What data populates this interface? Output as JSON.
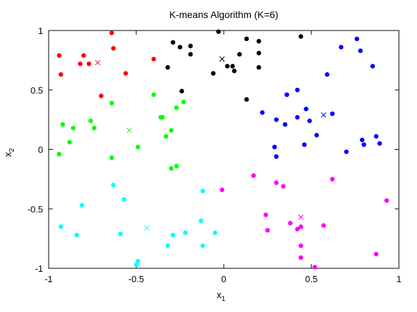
{
  "chart_data": {
    "type": "scatter",
    "title": "K-means Algorithm (K=6)",
    "xlabel": "x",
    "xlabel_sub": "1",
    "ylabel": "x",
    "ylabel_sub": "2",
    "xlim": [
      -1,
      1
    ],
    "ylim": [
      -1,
      1
    ],
    "xticks": [
      -1,
      -0.5,
      0,
      0.5,
      1
    ],
    "xtick_labels": [
      "-1",
      "-0.5",
      "0",
      "0.5",
      "1"
    ],
    "yticks": [
      -1,
      -0.5,
      0,
      0.5,
      1
    ],
    "ytick_labels": [
      "-1",
      "-0.5",
      "0",
      "0.5",
      "1"
    ],
    "grid": false,
    "series": [
      {
        "color": "#ff0000",
        "points": [
          [
            -0.94,
            0.79
          ],
          [
            -0.93,
            0.63
          ],
          [
            -0.8,
            0.79
          ],
          [
            -0.82,
            0.72
          ],
          [
            -0.77,
            0.72
          ],
          [
            -0.64,
            0.98
          ],
          [
            -0.63,
            0.85
          ],
          [
            -0.56,
            0.64
          ],
          [
            -0.4,
            0.76
          ],
          [
            -0.7,
            0.45
          ]
        ],
        "centroid": [
          -0.72,
          0.73
        ]
      },
      {
        "color": "#000000",
        "points": [
          [
            -0.29,
            0.9
          ],
          [
            -0.25,
            0.86
          ],
          [
            -0.19,
            0.87
          ],
          [
            -0.19,
            0.8
          ],
          [
            -0.32,
            0.69
          ],
          [
            -0.24,
            0.49
          ],
          [
            -0.03,
            0.99
          ],
          [
            0.13,
            0.93
          ],
          [
            0.2,
            0.91
          ],
          [
            0.2,
            0.81
          ],
          [
            0.09,
            0.8
          ],
          [
            0.05,
            0.7
          ],
          [
            0.02,
            0.7
          ],
          [
            0.06,
            0.66
          ],
          [
            -0.06,
            0.64
          ],
          [
            0.2,
            0.69
          ],
          [
            0.44,
            0.95
          ],
          [
            0.13,
            0.42
          ]
        ],
        "centroid": [
          -0.01,
          0.76
        ]
      },
      {
        "color": "#00ff00",
        "points": [
          [
            -0.92,
            0.21
          ],
          [
            -0.86,
            0.18
          ],
          [
            -0.94,
            -0.04
          ],
          [
            -0.88,
            0.06
          ],
          [
            -0.76,
            0.24
          ],
          [
            -0.74,
            0.18
          ],
          [
            -0.64,
            0.39
          ],
          [
            -0.64,
            -0.07
          ],
          [
            -0.49,
            0.02
          ],
          [
            -0.4,
            0.46
          ],
          [
            -0.36,
            0.27
          ],
          [
            -0.35,
            0.27
          ],
          [
            -0.33,
            0.11
          ],
          [
            -0.3,
            0.16
          ],
          [
            -0.27,
            0.35
          ],
          [
            -0.23,
            0.4
          ],
          [
            -0.3,
            -0.16
          ],
          [
            -0.27,
            -0.14
          ]
        ],
        "centroid": [
          -0.54,
          0.16
        ]
      },
      {
        "color": "#0000ff",
        "points": [
          [
            0.22,
            0.31
          ],
          [
            0.3,
            0.25
          ],
          [
            0.36,
            0.46
          ],
          [
            0.42,
            0.5
          ],
          [
            0.42,
            0.27
          ],
          [
            0.47,
            0.34
          ],
          [
            0.46,
            0.04
          ],
          [
            0.49,
            0.24
          ],
          [
            0.53,
            0.12
          ],
          [
            0.59,
            0.63
          ],
          [
            0.62,
            0.3
          ],
          [
            0.67,
            0.86
          ],
          [
            0.7,
            -0.02
          ],
          [
            0.76,
            0.93
          ],
          [
            0.78,
            0.83
          ],
          [
            0.79,
            0.08
          ],
          [
            0.8,
            0.04
          ],
          [
            0.85,
            0.7
          ],
          [
            0.87,
            0.11
          ],
          [
            0.89,
            0.05
          ],
          [
            0.29,
            0.02
          ],
          [
            0.3,
            -0.06
          ],
          [
            0.35,
            0.21
          ]
        ],
        "centroid": [
          0.57,
          0.29
        ]
      },
      {
        "color": "#00ffff",
        "points": [
          [
            -0.93,
            -0.65
          ],
          [
            -0.84,
            -0.72
          ],
          [
            -0.81,
            -0.47
          ],
          [
            -0.63,
            -0.3
          ],
          [
            -0.59,
            -0.71
          ],
          [
            -0.57,
            -0.42
          ],
          [
            -0.5,
            -0.97
          ],
          [
            -0.49,
            -0.94
          ],
          [
            -0.32,
            -0.81
          ],
          [
            -0.29,
            -0.72
          ],
          [
            -0.22,
            -0.7
          ],
          [
            -0.13,
            -0.6
          ],
          [
            -0.12,
            -0.35
          ],
          [
            -0.12,
            -0.81
          ],
          [
            -0.05,
            -0.7
          ]
        ],
        "centroid": [
          -0.44,
          -0.66
        ]
      },
      {
        "color": "#ff00ff",
        "points": [
          [
            -0.01,
            -0.34
          ],
          [
            0.17,
            -0.22
          ],
          [
            0.24,
            -0.55
          ],
          [
            0.25,
            -0.68
          ],
          [
            0.3,
            -0.28
          ],
          [
            0.34,
            -0.31
          ],
          [
            0.38,
            -0.62
          ],
          [
            0.42,
            -0.67
          ],
          [
            0.44,
            -0.65
          ],
          [
            0.44,
            -0.81
          ],
          [
            0.44,
            -0.91
          ],
          [
            0.52,
            -0.99
          ],
          [
            0.57,
            -0.64
          ],
          [
            0.62,
            -0.25
          ],
          [
            0.87,
            -0.88
          ],
          [
            0.93,
            -0.43
          ]
        ],
        "centroid": [
          0.44,
          -0.57
        ]
      }
    ]
  }
}
